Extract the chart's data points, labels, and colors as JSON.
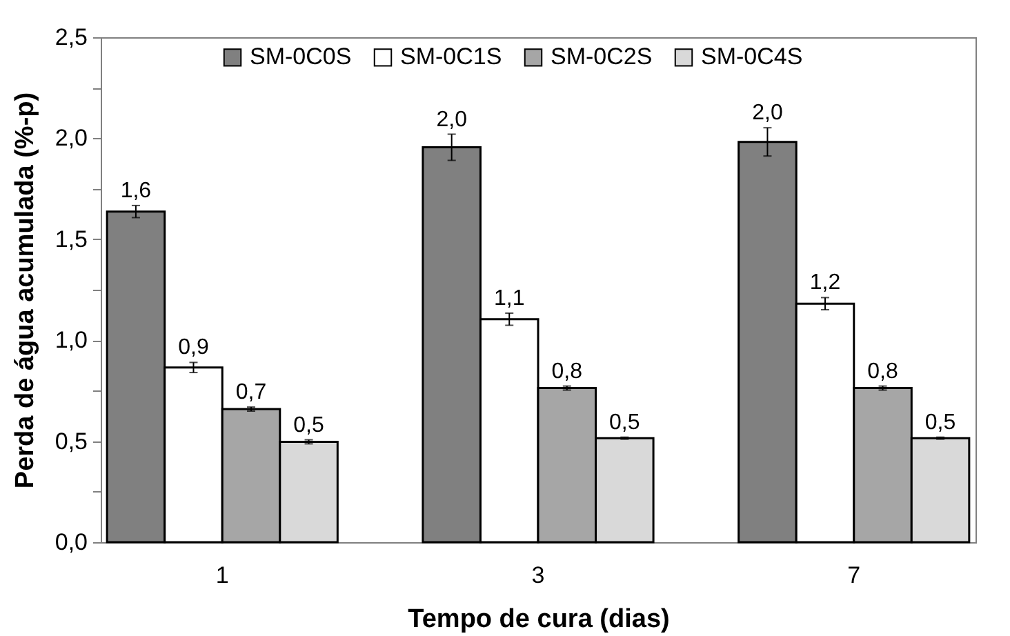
{
  "chart_data": {
    "type": "bar",
    "xlabel": "Tempo de cura (dias)",
    "ylabel": "Perda de água acumulada (%-p)",
    "categories": [
      "1",
      "3",
      "7"
    ],
    "series": [
      {
        "name": "SM-0C0S",
        "color": "#808080",
        "values": [
          1.637,
          1.955,
          1.982
        ],
        "errors": [
          0.03,
          0.065,
          0.07
        ],
        "value_labels": [
          "1,6",
          "2,0",
          "2,0"
        ]
      },
      {
        "name": "SM-0C1S",
        "color": "#ffffff",
        "values": [
          0.865,
          1.104,
          1.181
        ],
        "errors": [
          0.025,
          0.03,
          0.03
        ],
        "value_labels": [
          "0,9",
          "1,1",
          "1,2"
        ]
      },
      {
        "name": "SM-0C2S",
        "color": "#a6a6a6",
        "values": [
          0.659,
          0.763,
          0.763
        ],
        "errors": [
          0.01,
          0.01,
          0.01
        ],
        "value_labels": [
          "0,7",
          "0,8",
          "0,8"
        ]
      },
      {
        "name": "SM-0C4S",
        "color": "#d9d9d9",
        "values": [
          0.497,
          0.515,
          0.515
        ],
        "errors": [
          0.01,
          0.005,
          0.005
        ],
        "value_labels": [
          "0,5",
          "0,5",
          "0,5"
        ]
      }
    ],
    "ylim": [
      0,
      2.5
    ],
    "yticks": [
      {
        "value": 0,
        "label": "0,0"
      },
      {
        "value": 0.25,
        "label": null
      },
      {
        "value": 0.5,
        "label": "0,5"
      },
      {
        "value": 0.75,
        "label": null
      },
      {
        "value": 1,
        "label": "1,0"
      },
      {
        "value": 1.25,
        "label": null
      },
      {
        "value": 1.5,
        "label": "1,5"
      },
      {
        "value": 1.75,
        "label": null
      },
      {
        "value": 2,
        "label": "2,0"
      },
      {
        "value": 2.25,
        "label": null
      },
      {
        "value": 2.5,
        "label": "2,5"
      }
    ],
    "grid": false,
    "legend": "top"
  }
}
